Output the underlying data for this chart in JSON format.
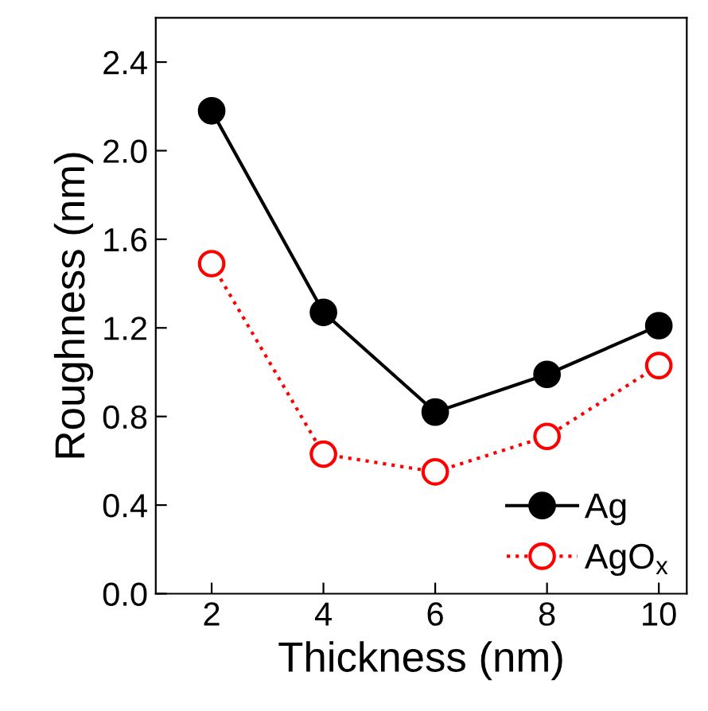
{
  "chart_data": {
    "type": "line",
    "xlabel": "Thickness (nm)",
    "ylabel": "Roughness (nm)",
    "x": [
      2,
      4,
      6,
      8,
      10
    ],
    "series": [
      {
        "name": "Ag",
        "color": "#000000",
        "values": [
          2.18,
          1.27,
          0.82,
          0.99,
          1.21
        ],
        "marker": "circle",
        "line_style": "solid"
      },
      {
        "name": "AgO$_{x}$",
        "color": "#ff0000",
        "values": [
          1.49,
          0.63,
          0.55,
          0.71,
          1.03
        ],
        "marker": "circle",
        "line_style": "dotted"
      }
    ],
    "xlim": [
      1,
      10.5
    ],
    "xticks": [
      2,
      4,
      6,
      8,
      10
    ],
    "ylim": [
      0,
      2.6
    ],
    "yticks": [
      {
        "value": 0,
        "label": "0.0"
      },
      0.4,
      0.8,
      1.2,
      1.6,
      {
        "value": 2,
        "label": "2.0"
      },
      2.4
    ],
    "grid": false,
    "legend": "bottom right"
  }
}
